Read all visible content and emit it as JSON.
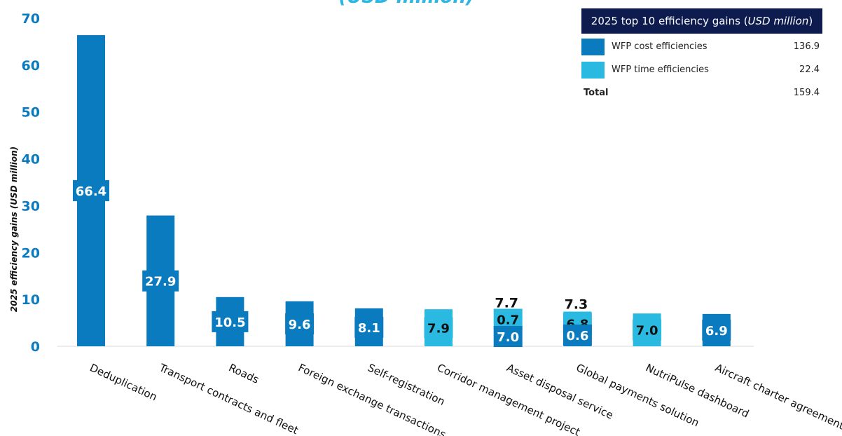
{
  "chart_data": {
    "type": "bar",
    "title_fragment": "(USD million)",
    "ylabel": "2025 efficiency gains (USD million)",
    "ylim": [
      0,
      70
    ],
    "yticks": [
      0,
      10,
      20,
      30,
      40,
      50,
      60,
      70
    ],
    "categories": [
      "Deduplication",
      "Transport contracts and fleet",
      "Roads",
      "Foreign exchange transactions",
      "Self-registration",
      "Corridor management project",
      "Asset disposal service",
      "Global payments solution",
      "NutriPulse dashboard",
      "Aircraft charter agreements"
    ],
    "series": [
      {
        "name": "WFP cost efficiencies",
        "color": "#0a7bbf",
        "values": [
          66.4,
          27.9,
          10.5,
          9.6,
          8.1,
          0,
          7.0,
          0.6,
          0,
          6.9
        ]
      },
      {
        "name": "WFP time efficiencies",
        "color": "#29b9e1",
        "values": [
          0,
          0,
          0,
          0,
          0,
          7.9,
          0.7,
          6.8,
          7.0,
          0
        ]
      }
    ],
    "stacked_totals": [
      {
        "category_index": 6,
        "label": "7.7"
      },
      {
        "category_index": 7,
        "label": "7.3"
      }
    ],
    "legend": {
      "title": "2025 top 10 efficiency gains",
      "title_unit": "USD million",
      "rows": [
        {
          "label": "WFP cost efficiencies",
          "value": "136.9",
          "color": "#0a7bbf"
        },
        {
          "label": "WFP time efficiencies",
          "value": "22.4",
          "color": "#29b9e1"
        }
      ],
      "total_label": "Total",
      "total_value": "159.4",
      "placement": "top-right"
    },
    "grid": false
  }
}
